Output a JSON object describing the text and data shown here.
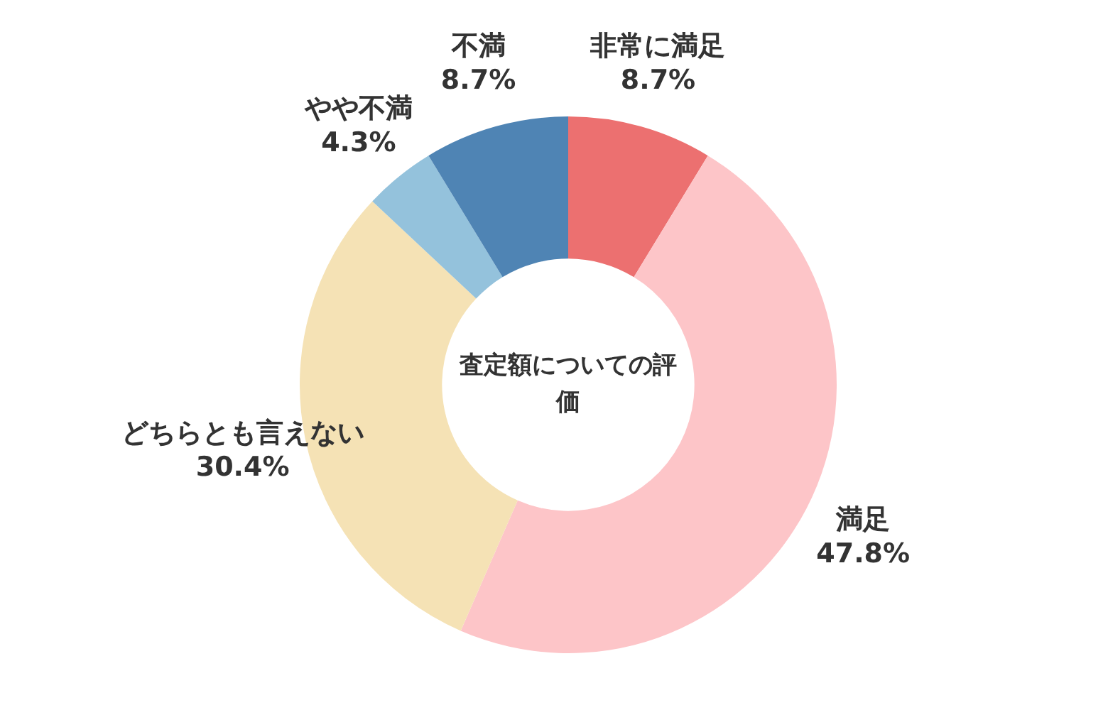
{
  "chart_data": {
    "type": "donut",
    "title": "査定額についての評価",
    "categories": [
      "非常に満足",
      "満足",
      "どちらとも言えない",
      "やや不満",
      "不満"
    ],
    "values": [
      8.7,
      47.8,
      30.4,
      4.3,
      8.7
    ],
    "value_labels": [
      "8.7%",
      "47.8%",
      "30.4%",
      "4.3%",
      "8.7%"
    ],
    "colors": [
      "#ec7070",
      "#fdc5c8",
      "#f5e2b5",
      "#94c2dc",
      "#4f84b4"
    ],
    "legend": false
  }
}
